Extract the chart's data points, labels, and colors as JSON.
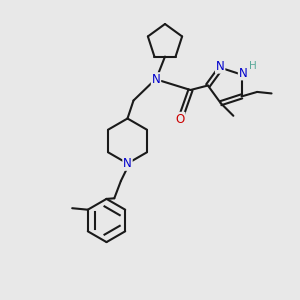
{
  "bg": "#e8e8e8",
  "bc": "#1a1a1a",
  "nc": "#0000cc",
  "oc": "#cc0000",
  "hc": "#5aaa9a",
  "lw": 1.5,
  "fs": 7.5,
  "figsize": [
    3.0,
    3.0
  ],
  "dpi": 100,
  "xlim": [
    0,
    10
  ],
  "ylim": [
    0,
    10
  ]
}
